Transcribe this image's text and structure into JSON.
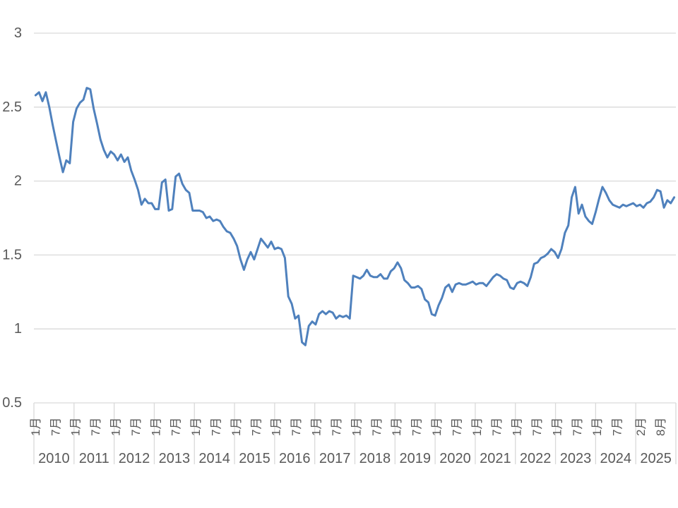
{
  "chart_data": {
    "type": "line",
    "frequency": "monthly",
    "x_start": "2010-01",
    "x_end": "2025-08",
    "legend": null,
    "grid": "horizontal",
    "colors": {
      "series": "#4F81BD",
      "gridline": "#D9D9D9",
      "label": "#595959",
      "background": "#FFFFFF"
    },
    "y_axis": {
      "range": [
        0.5,
        3.0
      ],
      "ticks": [
        0.5,
        1.0,
        1.5,
        2.0,
        2.5,
        3.0
      ],
      "tick_labels": [
        "0.5",
        "1",
        "1.5",
        "2",
        "2.5",
        "3"
      ]
    },
    "x_axis": {
      "years": [
        "2010",
        "2011",
        "2012",
        "2013",
        "2014",
        "2015",
        "2016",
        "2017",
        "2018",
        "2019",
        "2020",
        "2021",
        "2022",
        "2023",
        "2024",
        "2025"
      ],
      "month_ticks": [
        {
          "y": 0,
          "m": 0,
          "t": "1月"
        },
        {
          "y": 0,
          "m": 6,
          "t": "7月"
        },
        {
          "y": 1,
          "m": 0,
          "t": "1月"
        },
        {
          "y": 1,
          "m": 6,
          "t": "7月"
        },
        {
          "y": 2,
          "m": 0,
          "t": "1月"
        },
        {
          "y": 2,
          "m": 6,
          "t": "7月"
        },
        {
          "y": 3,
          "m": 0,
          "t": "1月"
        },
        {
          "y": 3,
          "m": 6,
          "t": "7月"
        },
        {
          "y": 4,
          "m": 0,
          "t": "1月"
        },
        {
          "y": 4,
          "m": 6,
          "t": "7月"
        },
        {
          "y": 5,
          "m": 0,
          "t": "1月"
        },
        {
          "y": 5,
          "m": 6,
          "t": "7月"
        },
        {
          "y": 6,
          "m": 0,
          "t": "1月"
        },
        {
          "y": 6,
          "m": 6,
          "t": "7月"
        },
        {
          "y": 7,
          "m": 0,
          "t": "1月"
        },
        {
          "y": 7,
          "m": 6,
          "t": "7月"
        },
        {
          "y": 8,
          "m": 0,
          "t": "1月"
        },
        {
          "y": 8,
          "m": 6,
          "t": "7月"
        },
        {
          "y": 9,
          "m": 0,
          "t": "1月"
        },
        {
          "y": 9,
          "m": 6,
          "t": "7月"
        },
        {
          "y": 10,
          "m": 0,
          "t": "1月"
        },
        {
          "y": 10,
          "m": 6,
          "t": "7月"
        },
        {
          "y": 11,
          "m": 0,
          "t": "1月"
        },
        {
          "y": 11,
          "m": 6,
          "t": "7月"
        },
        {
          "y": 12,
          "m": 0,
          "t": "1月"
        },
        {
          "y": 12,
          "m": 6,
          "t": "7月"
        },
        {
          "y": 13,
          "m": 0,
          "t": "1月"
        },
        {
          "y": 13,
          "m": 6,
          "t": "7月"
        },
        {
          "y": 14,
          "m": 0,
          "t": "1月"
        },
        {
          "y": 14,
          "m": 6,
          "t": "7月"
        },
        {
          "y": 15,
          "m": 1,
          "t": "2月"
        },
        {
          "y": 15,
          "m": 7,
          "t": "8月"
        }
      ]
    },
    "values": [
      2.58,
      2.6,
      2.54,
      2.6,
      2.5,
      2.38,
      2.27,
      2.16,
      2.06,
      2.14,
      2.12,
      2.4,
      2.49,
      2.53,
      2.55,
      2.63,
      2.62,
      2.49,
      2.39,
      2.28,
      2.21,
      2.16,
      2.2,
      2.18,
      2.14,
      2.18,
      2.13,
      2.16,
      2.07,
      2.01,
      1.94,
      1.84,
      1.88,
      1.85,
      1.85,
      1.81,
      1.81,
      1.99,
      2.01,
      1.8,
      1.81,
      2.03,
      2.05,
      1.98,
      1.94,
      1.92,
      1.8,
      1.8,
      1.8,
      1.79,
      1.75,
      1.76,
      1.73,
      1.74,
      1.73,
      1.69,
      1.66,
      1.65,
      1.61,
      1.56,
      1.47,
      1.4,
      1.47,
      1.52,
      1.47,
      1.54,
      1.61,
      1.58,
      1.55,
      1.59,
      1.54,
      1.55,
      1.54,
      1.48,
      1.22,
      1.17,
      1.07,
      1.09,
      0.91,
      0.89,
      1.02,
      1.05,
      1.03,
      1.1,
      1.12,
      1.1,
      1.12,
      1.11,
      1.07,
      1.09,
      1.08,
      1.09,
      1.07,
      1.36,
      1.35,
      1.34,
      1.36,
      1.4,
      1.36,
      1.35,
      1.35,
      1.37,
      1.34,
      1.34,
      1.39,
      1.41,
      1.45,
      1.41,
      1.33,
      1.31,
      1.28,
      1.28,
      1.29,
      1.27,
      1.2,
      1.18,
      1.1,
      1.09,
      1.16,
      1.21,
      1.28,
      1.3,
      1.25,
      1.3,
      1.31,
      1.3,
      1.3,
      1.31,
      1.32,
      1.3,
      1.31,
      1.31,
      1.29,
      1.32,
      1.35,
      1.37,
      1.36,
      1.34,
      1.33,
      1.28,
      1.27,
      1.31,
      1.32,
      1.31,
      1.29,
      1.35,
      1.44,
      1.45,
      1.48,
      1.49,
      1.51,
      1.54,
      1.52,
      1.48,
      1.54,
      1.65,
      1.7,
      1.89,
      1.96,
      1.78,
      1.84,
      1.76,
      1.73,
      1.71,
      1.79,
      1.88,
      1.96,
      1.92,
      1.87,
      1.84,
      1.83,
      1.82,
      1.84,
      1.83,
      1.84,
      1.85,
      1.83,
      1.84,
      1.82,
      1.85,
      1.86,
      1.89,
      1.94,
      1.93,
      1.82,
      1.87,
      1.85,
      1.89
    ]
  }
}
